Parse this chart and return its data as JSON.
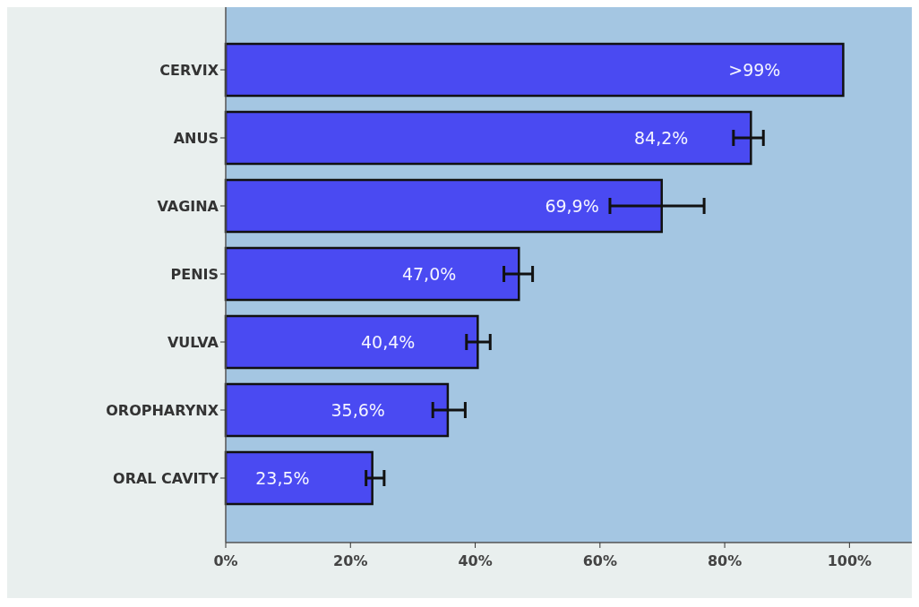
{
  "chart_data": {
    "type": "bar",
    "orientation": "horizontal",
    "categories": [
      "CERVIX",
      "ANUS",
      "VAGINA",
      "PENIS",
      "VULVA",
      "OROPHARYNX",
      "ORAL CAVITY"
    ],
    "values": [
      99,
      84.2,
      69.9,
      47.0,
      40.4,
      35.6,
      23.5
    ],
    "value_labels": [
      ">99%",
      "84,2%",
      "69,9%",
      "47,0%",
      "40,4%",
      "35,6%",
      "23,5%"
    ],
    "errors": [
      null,
      [
        81.4,
        86.2
      ],
      [
        61.6,
        76.7
      ],
      [
        44.6,
        49.2
      ],
      [
        38.6,
        42.4
      ],
      [
        33.2,
        38.4
      ],
      [
        22.5,
        25.4
      ]
    ],
    "color": "#4a4af2",
    "xlim": [
      0,
      110
    ],
    "xticks": [
      {
        "value": 0,
        "label": "0%"
      },
      {
        "value": 20,
        "label": "20%"
      },
      {
        "value": 40,
        "label": "40%"
      },
      {
        "value": 60,
        "label": "60%"
      },
      {
        "value": 80,
        "label": "80%"
      },
      {
        "value": 100,
        "label": "100%"
      }
    ],
    "grid": false
  }
}
